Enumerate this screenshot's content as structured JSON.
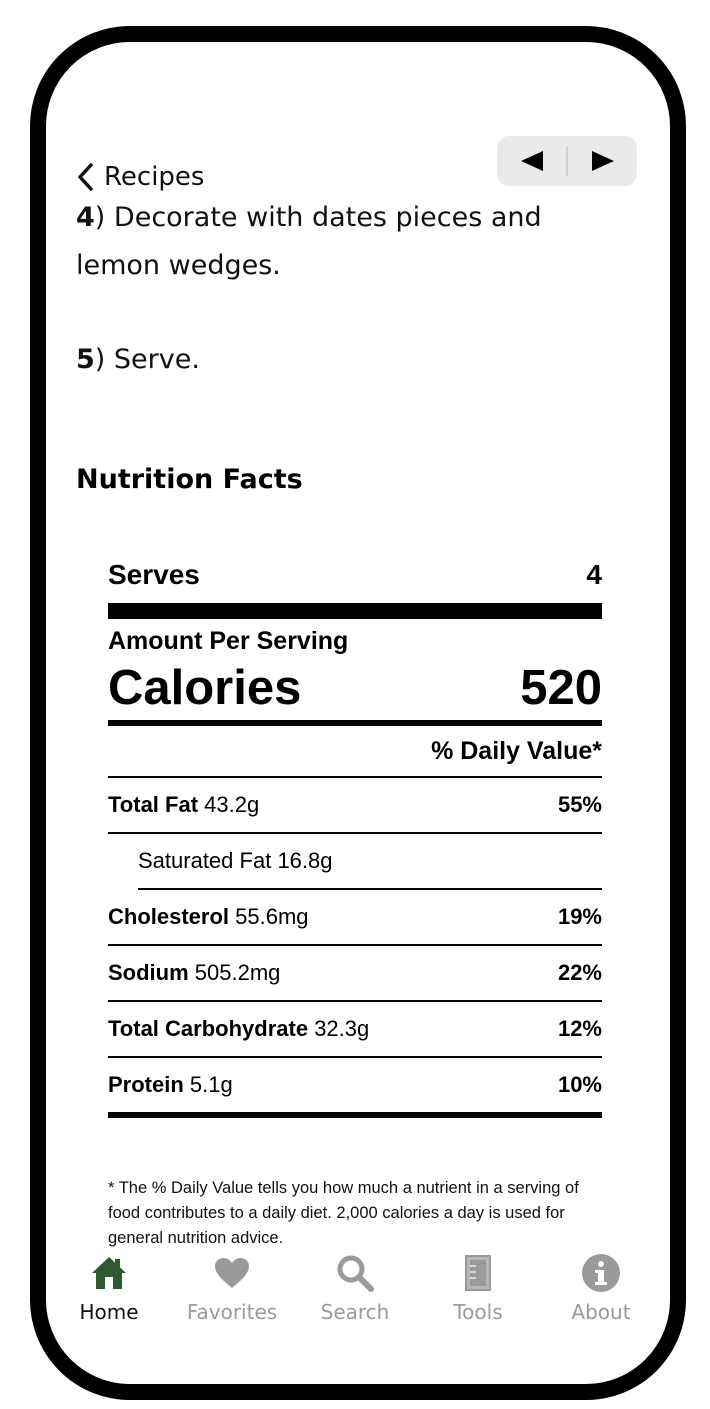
{
  "nav": {
    "back_label": "Recipes"
  },
  "steps": [
    {
      "num": "4",
      "text": ") Decorate with dates pieces and lemon wedges."
    },
    {
      "num": "5",
      "text": ") Serve."
    }
  ],
  "nutrition": {
    "heading": "Nutrition Facts",
    "serves_label": "Serves",
    "serves_value": "4",
    "amount_per_serving": "Amount Per Serving",
    "calories_label": "Calories",
    "calories_value": "520",
    "dv_header": "% Daily Value*",
    "rows": [
      {
        "name": "Total Fat",
        "amount": "43.2g",
        "pct": "55%"
      },
      {
        "name": "Saturated Fat",
        "amount": "16.8g",
        "pct": ""
      },
      {
        "name": "Cholesterol",
        "amount": "55.6mg",
        "pct": "19%"
      },
      {
        "name": "Sodium",
        "amount": "505.2mg",
        "pct": "22%"
      },
      {
        "name": "Total Carbohydrate",
        "amount": "32.3g",
        "pct": "12%"
      },
      {
        "name": "Protein",
        "amount": "5.1g",
        "pct": "10%"
      }
    ],
    "footnote": "* The % Daily Value tells you how much a nutrient in a serving of food contributes to a daily diet. 2,000 calories a day is used for general nutrition advice."
  },
  "tabs": [
    {
      "label": "Home",
      "icon": "home-icon",
      "active": true
    },
    {
      "label": "Favorites",
      "icon": "heart-icon"
    },
    {
      "label": "Search",
      "icon": "search-icon"
    },
    {
      "label": "Tools",
      "icon": "tools-icon"
    },
    {
      "label": "About",
      "icon": "info-icon"
    }
  ],
  "colors": {
    "active_tab": "#2f5a2f",
    "inactive_tab": "#9a9a9a",
    "nav_bg": "#eaeaea"
  }
}
